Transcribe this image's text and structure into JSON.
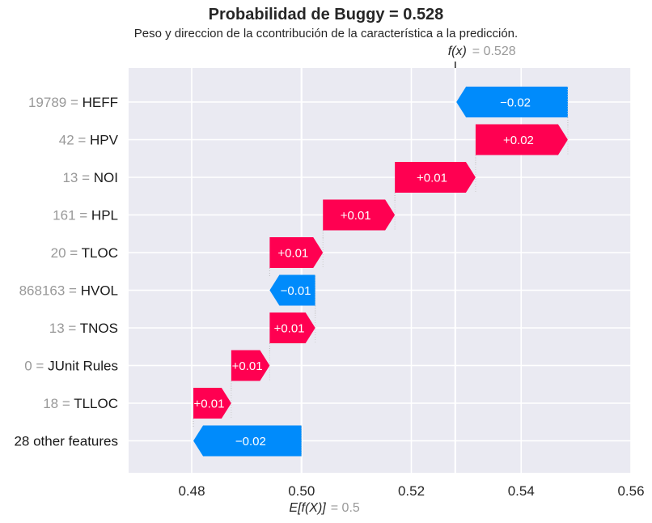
{
  "chart_data": {
    "type": "waterfall",
    "title": "Probabilidad de Buggy = 0.528",
    "subtitle": "Peso y direccion de la ccontribución de la característica a la predicción.",
    "xlim": [
      0.468,
      0.56
    ],
    "xticks": [
      0.48,
      0.5,
      0.52,
      0.54,
      0.56
    ],
    "xtick_labels": [
      "0.48",
      "0.50",
      "0.52",
      "0.54",
      "0.56"
    ],
    "base_value": 0.5,
    "base_label": "E[f(X)]",
    "base_value_label": "= 0.5",
    "fx_value": 0.528,
    "fx_label": "f(x)",
    "fx_value_label": "= 0.528",
    "features": [
      {
        "value": "19789",
        "name": "HEFF",
        "start": 0.5485,
        "end": 0.5282,
        "label": "−0.02"
      },
      {
        "value": "42",
        "name": "HPV",
        "start": 0.5317,
        "end": 0.5485,
        "label": "+0.02"
      },
      {
        "value": "13",
        "name": "NOI",
        "start": 0.517,
        "end": 0.5317,
        "label": "+0.01"
      },
      {
        "value": "161",
        "name": "HPL",
        "start": 0.5039,
        "end": 0.517,
        "label": "+0.01"
      },
      {
        "value": "20",
        "name": "TLOC",
        "start": 0.4942,
        "end": 0.5039,
        "label": "+0.01"
      },
      {
        "value": "868163",
        "name": "HVOL",
        "start": 0.5025,
        "end": 0.4942,
        "label": "−0.01"
      },
      {
        "value": "13",
        "name": "TNOS",
        "start": 0.4942,
        "end": 0.5025,
        "label": "+0.01"
      },
      {
        "value": "0",
        "name": "JUnit Rules",
        "start": 0.4872,
        "end": 0.4942,
        "label": "+0.01"
      },
      {
        "value": "18",
        "name": "TLLOC",
        "start": 0.4803,
        "end": 0.4872,
        "label": "+0.01"
      },
      {
        "value": "",
        "name": "28 other features",
        "start": 0.5,
        "end": 0.4803,
        "label": "−0.02"
      }
    ],
    "colors": {
      "positive": "#ff0051",
      "negative": "#008bfb",
      "background": "#eaeaf2",
      "grid": "#ffffff"
    }
  }
}
